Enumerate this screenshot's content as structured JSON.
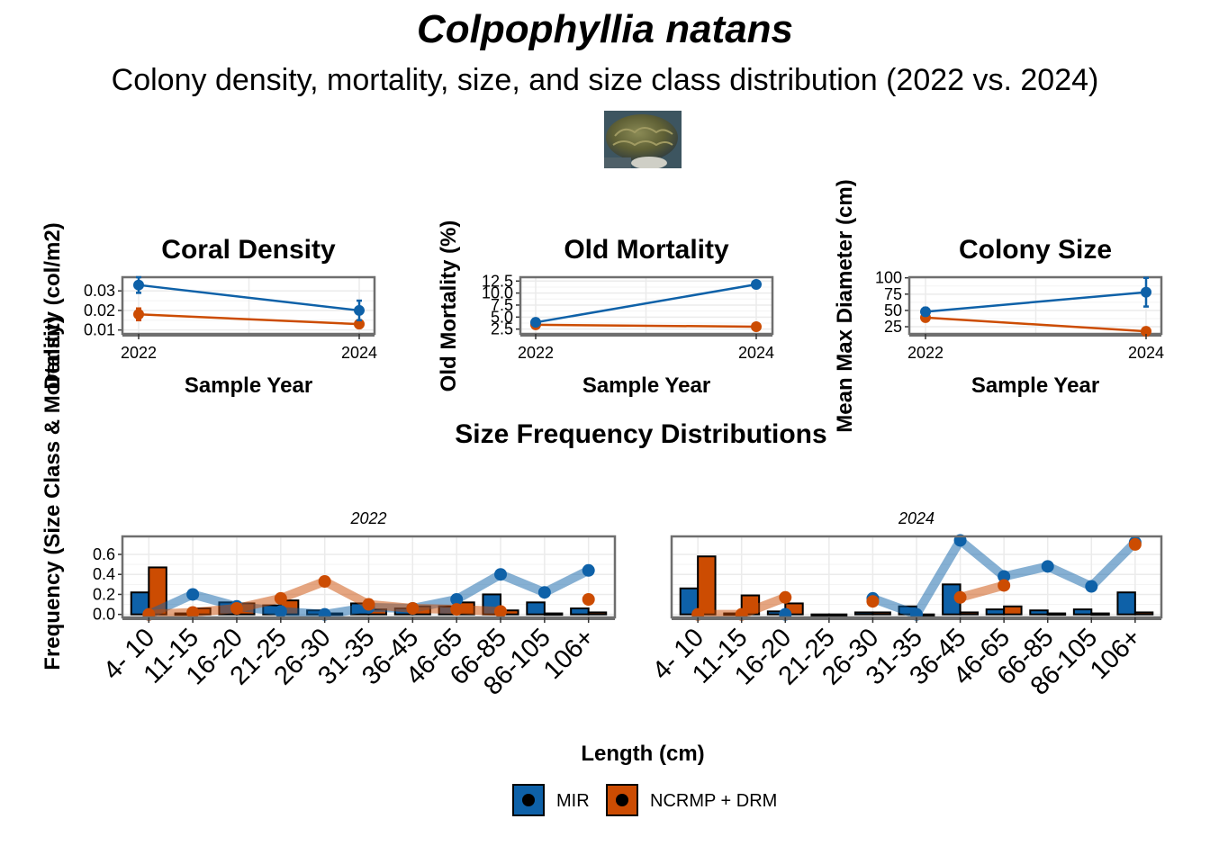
{
  "header": {
    "title": "Colpophyllia natans",
    "subtitle": "Colony density, mortality, size, and size class distribution (2022 vs. 2024)"
  },
  "colors": {
    "MIR": "#0E61A8",
    "NCRMP_DRM": "#CC4C02",
    "panel_border": "#6e6e6e",
    "grid": "#ebebeb"
  },
  "legend": {
    "placement": "bottom",
    "items": [
      "MIR",
      "NCRMP + DRM"
    ]
  },
  "chart_data": [
    {
      "type": "line",
      "title": "Coral Density",
      "xlabel": "Sample Year",
      "ylabel": "Density (col/m2)",
      "x": [
        2022,
        2024
      ],
      "yticks": [
        0.01,
        0.02,
        0.03
      ],
      "ytick_labels": [
        "0.01",
        "0.02",
        "0.03"
      ],
      "ylim": [
        0.008,
        0.037
      ],
      "series": [
        {
          "name": "MIR",
          "values": [
            0.033,
            0.02
          ],
          "err": [
            0.004,
            0.005
          ]
        },
        {
          "name": "NCRMP + DRM",
          "values": [
            0.018,
            0.013
          ],
          "err": [
            0.003,
            0.0
          ]
        }
      ]
    },
    {
      "type": "line",
      "title": "Old Mortality",
      "xlabel": "Sample Year",
      "ylabel": "Old Mortality (%)",
      "x": [
        2022,
        2024
      ],
      "yticks": [
        2.5,
        5.0,
        7.5,
        10.0,
        12.5
      ],
      "ytick_labels": [
        "2.5",
        "5.0",
        "7.5",
        "10.0",
        "12.5"
      ],
      "ylim": [
        1.5,
        13.3
      ],
      "series": [
        {
          "name": "MIR",
          "values": [
            3.9,
            11.8
          ],
          "err": [
            0.0,
            0.0
          ]
        },
        {
          "name": "NCRMP + DRM",
          "values": [
            3.4,
            3.0
          ],
          "err": [
            0.0,
            0.0
          ]
        }
      ]
    },
    {
      "type": "line",
      "title": "Colony Size",
      "xlabel": "Sample Year",
      "ylabel": "Mean Max Diameter (cm)",
      "x": [
        2022,
        2024
      ],
      "yticks": [
        25,
        50,
        75,
        100
      ],
      "ytick_labels": [
        "25",
        "50",
        "75",
        "100"
      ],
      "ylim": [
        14,
        101
      ],
      "series": [
        {
          "name": "MIR",
          "values": [
            48,
            78
          ],
          "err": [
            6,
            22
          ]
        },
        {
          "name": "NCRMP + DRM",
          "values": [
            39,
            18
          ],
          "err": [
            4,
            0
          ]
        }
      ]
    },
    {
      "type": "bar",
      "title": "Size Frequency Distributions",
      "xlabel": "Length (cm)",
      "ylabel": "Frequency (Size Class & Mortality)",
      "categories": [
        "4- 10",
        "11-15",
        "16-20",
        "21-25",
        "26-30",
        "31-35",
        "36-45",
        "46-65",
        "66-85",
        "86-105",
        "106+"
      ],
      "yticks": [
        0.0,
        0.2,
        0.4,
        0.6
      ],
      "ytick_labels": [
        "0.0",
        "0.2",
        "0.4",
        "0.6"
      ],
      "ylim": [
        -0.03,
        0.78
      ],
      "facets": [
        {
          "label": "2022",
          "bars": [
            {
              "name": "MIR",
              "values": [
                0.22,
                0.01,
                0.12,
                0.09,
                0.04,
                0.11,
                0.06,
                0.08,
                0.2,
                0.12,
                0.06
              ]
            },
            {
              "name": "NCRMP + DRM",
              "values": [
                0.47,
                0.06,
                0.11,
                0.14,
                0.01,
                0.05,
                0.08,
                0.12,
                0.04,
                0.01,
                0.02
              ]
            }
          ],
          "lines": [
            {
              "name": "MIR",
              "values": [
                0.0,
                0.2,
                0.08,
                0.03,
                0.0,
                0.07,
                0.06,
                0.15,
                0.4,
                0.22,
                0.44
              ]
            },
            {
              "name": "NCRMP + DRM",
              "values": [
                0.0,
                0.02,
                0.06,
                0.16,
                0.33,
                0.1,
                0.06,
                0.05,
                0.03,
                null,
                0.15
              ]
            }
          ]
        },
        {
          "label": "2024",
          "bars": [
            {
              "name": "MIR",
              "values": [
                0.26,
                0.01,
                0.03,
                0.0,
                0.02,
                0.08,
                0.3,
                0.05,
                0.04,
                0.05,
                0.22
              ]
            },
            {
              "name": "NCRMP + DRM",
              "values": [
                0.58,
                0.19,
                0.11,
                0.0,
                0.02,
                0.0,
                0.02,
                0.08,
                0.01,
                0.01,
                0.02
              ]
            }
          ],
          "lines": [
            {
              "name": "MIR",
              "values": [
                null,
                null,
                0.0,
                null,
                0.16,
                0.0,
                0.74,
                0.38,
                0.48,
                0.28,
                0.72
              ]
            },
            {
              "name": "NCRMP + DRM",
              "values": [
                0.0,
                0.0,
                0.17,
                null,
                0.13,
                null,
                0.17,
                0.29,
                null,
                null,
                0.7
              ]
            }
          ]
        }
      ]
    }
  ]
}
